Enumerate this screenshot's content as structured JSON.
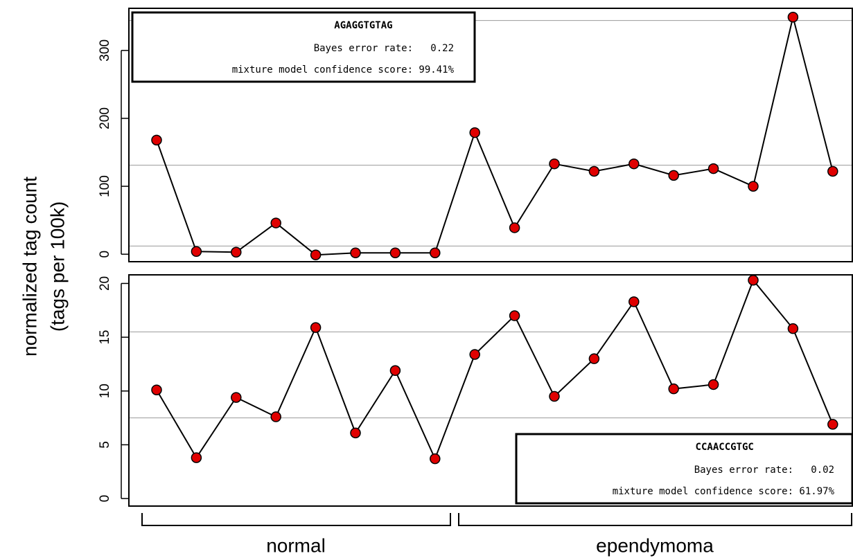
{
  "ylabel": [
    "normalized tag count",
    "(tags per 100k)"
  ],
  "groups": [
    "normal",
    "ependymoma"
  ],
  "chart_data": [
    {
      "type": "line",
      "color": "#e00000",
      "values": [
        168,
        4,
        3,
        46,
        -1,
        2,
        2,
        2,
        179,
        39,
        133,
        122,
        133,
        116,
        126,
        100,
        349,
        122
      ],
      "ylim": [
        -11,
        362
      ],
      "yticks": [
        0,
        100,
        200,
        300
      ],
      "hlines": [
        344,
        131,
        12
      ],
      "legend": {
        "corner": "top-left",
        "title": "AGAGGTGTAG",
        "lines": [
          "Bayes error rate:   0.22",
          "mixture model confidence score: 99.41%"
        ]
      }
    },
    {
      "type": "line",
      "color": "#e00000",
      "values": [
        10.1,
        3.8,
        9.4,
        7.6,
        15.9,
        6.1,
        11.9,
        3.7,
        13.4,
        17.0,
        9.5,
        13.0,
        18.3,
        10.2,
        10.6,
        20.3,
        15.8,
        6.9
      ],
      "ylim": [
        -0.7,
        20.8
      ],
      "yticks": [
        0,
        5,
        10,
        15,
        20
      ],
      "hlines": [
        15.5,
        7.5
      ],
      "legend": {
        "corner": "bottom-right",
        "title": "CCAACCGTGC",
        "lines": [
          "Bayes error rate:   0.02",
          "mixture model confidence score: 61.97%"
        ]
      }
    }
  ]
}
